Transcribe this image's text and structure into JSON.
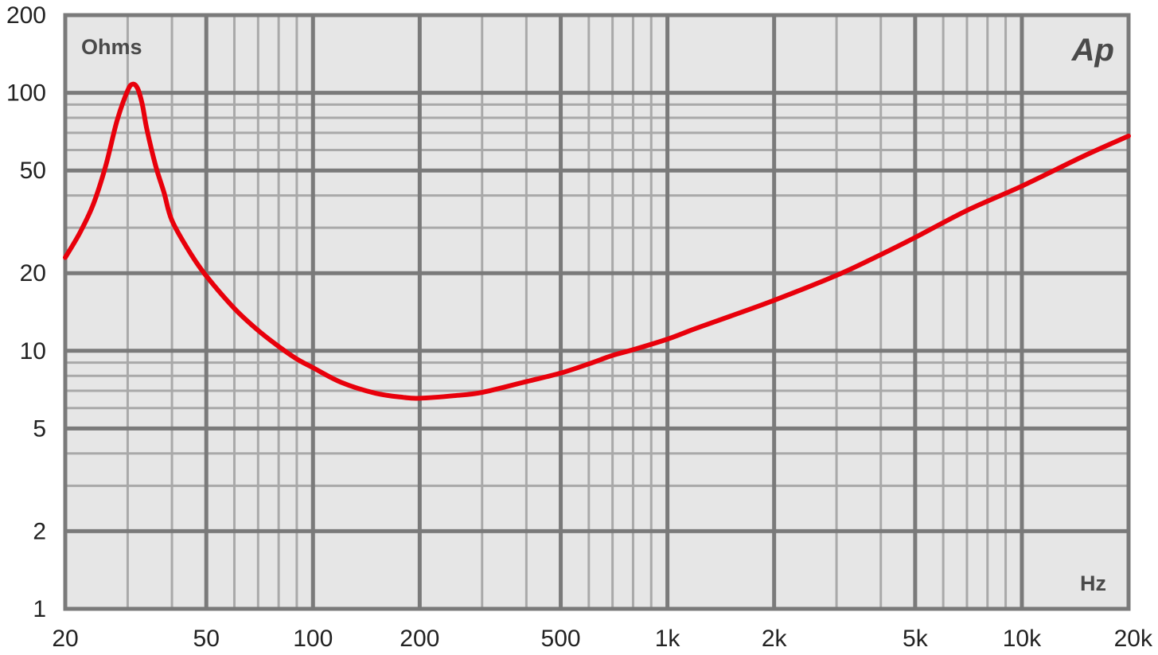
{
  "chart_data": {
    "type": "line",
    "title": "",
    "xlabel": "Hz",
    "ylabel": "Ohms",
    "x_scale": "log",
    "y_scale": "log",
    "xlim": [
      20,
      20000
    ],
    "ylim": [
      1,
      200
    ],
    "grid": true,
    "logo": "Ap",
    "x_ticks": [
      {
        "value": 20,
        "label": "20"
      },
      {
        "value": 50,
        "label": "50"
      },
      {
        "value": 100,
        "label": "100"
      },
      {
        "value": 200,
        "label": "200"
      },
      {
        "value": 500,
        "label": "500"
      },
      {
        "value": 1000,
        "label": "1k"
      },
      {
        "value": 2000,
        "label": "2k"
      },
      {
        "value": 5000,
        "label": "5k"
      },
      {
        "value": 10000,
        "label": "10k"
      },
      {
        "value": 20000,
        "label": "20k"
      }
    ],
    "y_ticks": [
      {
        "value": 1,
        "label": "1"
      },
      {
        "value": 2,
        "label": "2"
      },
      {
        "value": 5,
        "label": "5"
      },
      {
        "value": 10,
        "label": "10"
      },
      {
        "value": 20,
        "label": "20"
      },
      {
        "value": 50,
        "label": "50"
      },
      {
        "value": 100,
        "label": "100"
      },
      {
        "value": 200,
        "label": "200"
      }
    ],
    "x_grid_minor": [
      30,
      40,
      60,
      70,
      80,
      90,
      300,
      400,
      600,
      700,
      800,
      900,
      3000,
      4000,
      6000,
      7000,
      8000,
      9000
    ],
    "y_grid_minor": [
      3,
      4,
      6,
      7,
      8,
      9,
      30,
      40,
      60,
      70,
      80,
      90
    ],
    "series": [
      {
        "color": "#e8000b",
        "x": [
          20,
          22,
          24,
          26,
          28,
          30,
          31,
          32,
          33,
          34,
          36,
          38,
          40,
          45,
          50,
          60,
          70,
          80,
          90,
          100,
          120,
          150,
          180,
          200,
          250,
          300,
          400,
          500,
          600,
          700,
          800,
          1000,
          1200,
          1500,
          2000,
          3000,
          4000,
          5000,
          7000,
          10000,
          15000,
          20000
        ],
        "y": [
          23,
          28.7,
          37,
          52,
          78,
          102,
          108,
          104,
          90,
          72,
          52,
          41,
          32,
          24,
          19.5,
          14.6,
          12,
          10.4,
          9.3,
          8.6,
          7.55,
          6.85,
          6.6,
          6.55,
          6.7,
          6.9,
          7.6,
          8.2,
          8.9,
          9.6,
          10.1,
          11.1,
          12.2,
          13.6,
          15.7,
          19.6,
          23.6,
          27.5,
          35,
          43.5,
          57,
          68
        ]
      }
    ]
  }
}
